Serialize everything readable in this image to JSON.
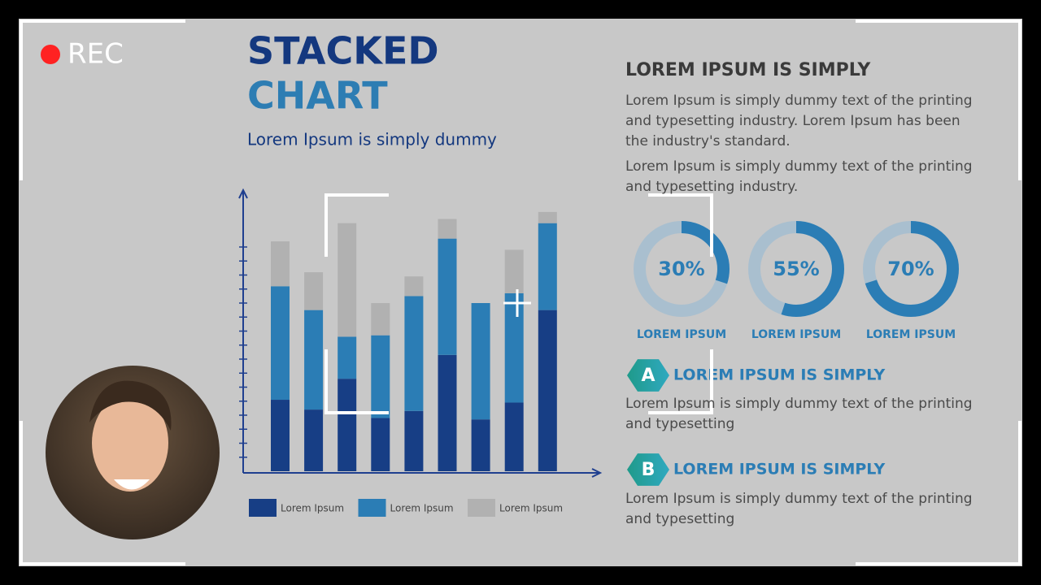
{
  "recorder": {
    "rec": "REC"
  },
  "slide": {
    "title_line1": "STACKED",
    "title_line2": "CHART",
    "subtitle": "Lorem Ipsum is simply dummy",
    "heading": "LOREM IPSUM IS SIMPLY",
    "para1": "Lorem Ipsum is simply dummy text of the printing and typesetting industry. Lorem Ipsum has been the industry's standard.",
    "para2": "Lorem Ipsum is simply dummy text of the printing and typesetting industry.",
    "items": [
      {
        "badge": "A",
        "heading": "LOREM IPSUM IS SIMPLY",
        "text": "Lorem Ipsum is simply dummy text of the printing and typesetting"
      },
      {
        "badge": "B",
        "heading": "LOREM IPSUM IS SIMPLY",
        "text": "Lorem Ipsum is simply dummy text of the printing and typesetting"
      }
    ]
  },
  "chart_data": [
    {
      "type": "stacked_bar",
      "categories": [
        null,
        null,
        null,
        null,
        null,
        null,
        null,
        null,
        null
      ],
      "series": [
        {
          "name": "Lorem Ipsum",
          "color": "#173e85",
          "values": [
            5.1,
            4.4,
            6.6,
            3.8,
            4.3,
            8.3,
            3.7,
            4.9,
            11.5
          ]
        },
        {
          "name": "Lorem Ipsum",
          "color": "#2b7db5",
          "values": [
            8.1,
            7.1,
            3.0,
            5.9,
            8.2,
            8.3,
            8.3,
            7.8,
            6.2
          ]
        },
        {
          "name": "Lorem Ipsum",
          "color": "#b1b1b1",
          "values": [
            3.2,
            2.7,
            8.1,
            2.3,
            1.4,
            1.4,
            0,
            3.1,
            0.8
          ]
        }
      ],
      "ylim": [
        0,
        20
      ],
      "yticks": [
        1,
        2,
        3,
        4,
        5,
        6,
        7,
        8,
        9,
        10,
        11,
        12,
        13,
        14,
        15,
        16
      ]
    },
    {
      "type": "donut",
      "categories": [
        "LOREM IPSUM",
        "LOREM IPSUM",
        "LOREM IPSUM"
      ],
      "values": [
        30,
        55,
        70
      ],
      "value_labels": [
        "30%",
        "55%",
        "70%"
      ],
      "color": "#2b7db5",
      "track_color": "#a9bfcf"
    }
  ]
}
